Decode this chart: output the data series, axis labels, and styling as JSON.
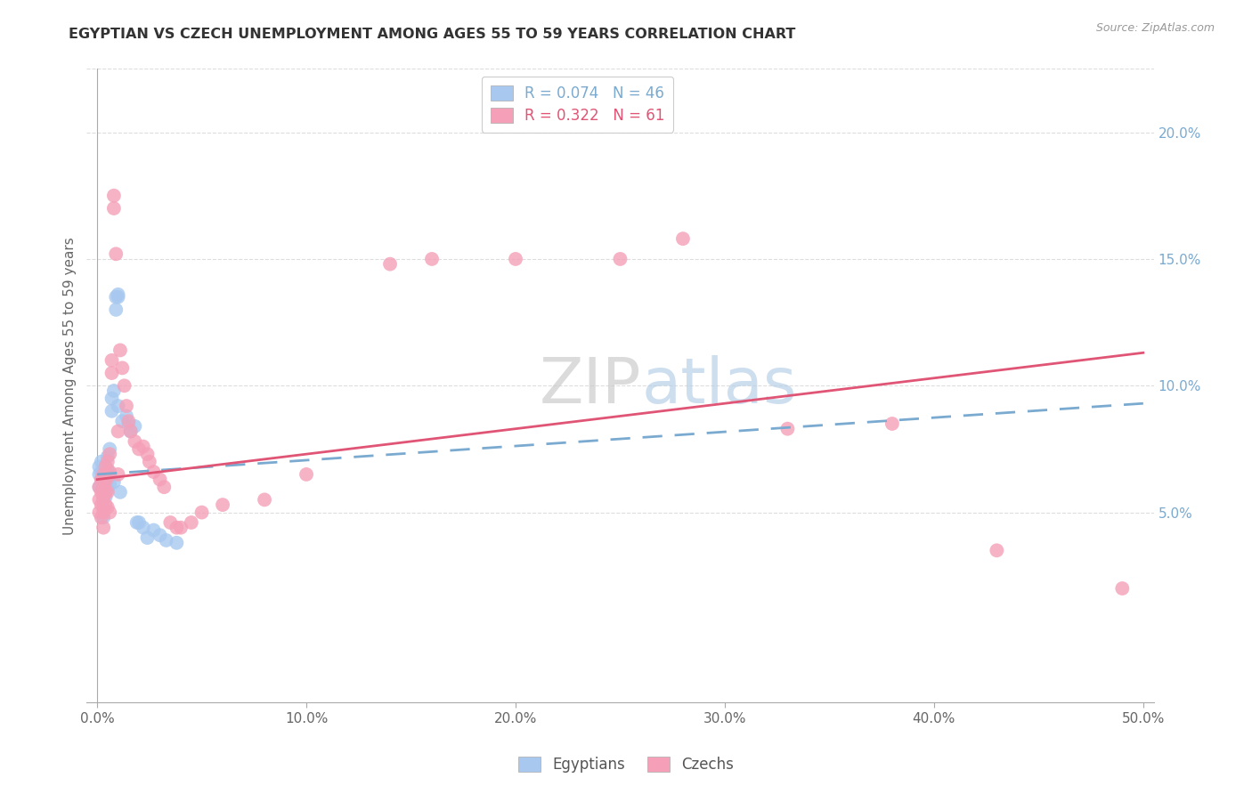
{
  "title": "EGYPTIAN VS CZECH UNEMPLOYMENT AMONG AGES 55 TO 59 YEARS CORRELATION CHART",
  "source": "Source: ZipAtlas.com",
  "ylabel": "Unemployment Among Ages 55 to 59 years",
  "xlim": [
    -0.005,
    0.505
  ],
  "ylim": [
    -0.025,
    0.225
  ],
  "xtick_vals": [
    0.0,
    0.1,
    0.2,
    0.3,
    0.4,
    0.5
  ],
  "xticklabels": [
    "0.0%",
    "10.0%",
    "20.0%",
    "30.0%",
    "40.0%",
    "50.0%"
  ],
  "ytick_vals": [
    0.05,
    0.1,
    0.15,
    0.2
  ],
  "ytick_labels": [
    "5.0%",
    "10.0%",
    "15.0%",
    "20.0%"
  ],
  "color_egyptian": "#a8c8f0",
  "color_czech": "#f5a0b8",
  "color_line_egyptian": "#7aaad0",
  "color_line_czech": "#e05575",
  "color_grid": "#dddddd",
  "color_axis": "#aaaaaa",
  "color_ylabel": "#666666",
  "color_xtick": "#666666",
  "color_ytick_right": "#7aaad0",
  "color_title": "#333333",
  "color_source": "#999999",
  "egypt_line_y0": 0.065,
  "egypt_line_y1": 0.093,
  "czech_line_y0": 0.063,
  "czech_line_y1": 0.113,
  "egypt_x": [
    0.001,
    0.001,
    0.001,
    0.002,
    0.002,
    0.002,
    0.002,
    0.003,
    0.003,
    0.003,
    0.003,
    0.003,
    0.004,
    0.004,
    0.004,
    0.004,
    0.005,
    0.005,
    0.005,
    0.005,
    0.006,
    0.006,
    0.006,
    0.007,
    0.007,
    0.008,
    0.008,
    0.009,
    0.009,
    0.01,
    0.01,
    0.01,
    0.011,
    0.012,
    0.014,
    0.015,
    0.016,
    0.018,
    0.019,
    0.02,
    0.022,
    0.024,
    0.027,
    0.03,
    0.033,
    0.038
  ],
  "egypt_y": [
    0.06,
    0.065,
    0.068,
    0.061,
    0.063,
    0.066,
    0.07,
    0.058,
    0.062,
    0.065,
    0.048,
    0.055,
    0.06,
    0.064,
    0.068,
    0.056,
    0.063,
    0.067,
    0.059,
    0.072,
    0.061,
    0.065,
    0.075,
    0.09,
    0.095,
    0.062,
    0.098,
    0.13,
    0.135,
    0.135,
    0.092,
    0.136,
    0.058,
    0.086,
    0.088,
    0.085,
    0.082,
    0.084,
    0.046,
    0.046,
    0.044,
    0.04,
    0.043,
    0.041,
    0.039,
    0.038
  ],
  "czech_x": [
    0.001,
    0.001,
    0.001,
    0.002,
    0.002,
    0.002,
    0.002,
    0.003,
    0.003,
    0.003,
    0.003,
    0.003,
    0.004,
    0.004,
    0.004,
    0.004,
    0.005,
    0.005,
    0.005,
    0.005,
    0.006,
    0.006,
    0.006,
    0.007,
    0.007,
    0.008,
    0.008,
    0.009,
    0.01,
    0.01,
    0.011,
    0.012,
    0.013,
    0.014,
    0.015,
    0.016,
    0.018,
    0.02,
    0.022,
    0.024,
    0.025,
    0.027,
    0.03,
    0.032,
    0.035,
    0.038,
    0.04,
    0.045,
    0.05,
    0.06,
    0.08,
    0.1,
    0.14,
    0.16,
    0.2,
    0.25,
    0.28,
    0.33,
    0.38,
    0.43,
    0.49
  ],
  "czech_y": [
    0.06,
    0.055,
    0.05,
    0.063,
    0.058,
    0.053,
    0.048,
    0.065,
    0.06,
    0.056,
    0.05,
    0.044,
    0.068,
    0.062,
    0.058,
    0.053,
    0.07,
    0.064,
    0.058,
    0.052,
    0.05,
    0.073,
    0.066,
    0.105,
    0.11,
    0.17,
    0.175,
    0.152,
    0.065,
    0.082,
    0.114,
    0.107,
    0.1,
    0.092,
    0.086,
    0.082,
    0.078,
    0.075,
    0.076,
    0.073,
    0.07,
    0.066,
    0.063,
    0.06,
    0.046,
    0.044,
    0.044,
    0.046,
    0.05,
    0.053,
    0.055,
    0.065,
    0.148,
    0.15,
    0.15,
    0.15,
    0.158,
    0.083,
    0.085,
    0.035,
    0.02
  ]
}
